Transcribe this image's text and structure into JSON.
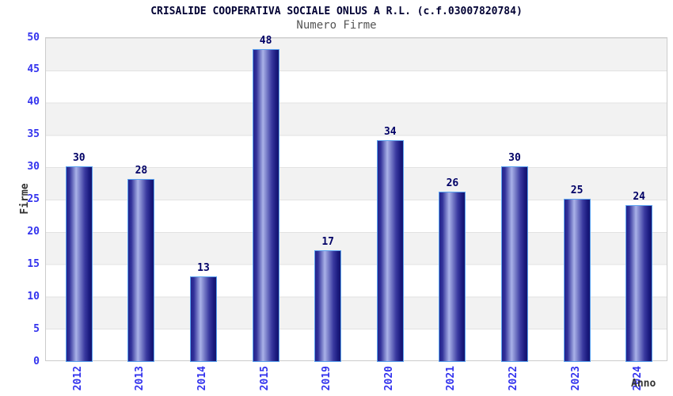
{
  "header": {
    "title": "CRISALIDE COOPERATIVA SOCIALE ONLUS A R.L. (c.f.03007820784)",
    "subtitle": "Numero Firme"
  },
  "chart_data": {
    "type": "bar",
    "title": "CRISALIDE COOPERATIVA SOCIALE ONLUS A R.L. (c.f.03007820784)",
    "subtitle": "Numero Firme",
    "categories": [
      "2012",
      "2013",
      "2014",
      "2015",
      "2019",
      "2020",
      "2021",
      "2022",
      "2023",
      "2024"
    ],
    "values": [
      30,
      28,
      13,
      48,
      17,
      34,
      26,
      30,
      25,
      24
    ],
    "xlabel": "Anno",
    "ylabel": "Firme",
    "ylim": [
      0,
      50
    ],
    "ytick_step": 5,
    "yticks": [
      0,
      5,
      10,
      15,
      20,
      25,
      30,
      35,
      40,
      45,
      50
    ],
    "grid": "horizontal-bands",
    "legend_position": "none",
    "bar_value_labels_shown": true,
    "x_tick_rotation_degrees": 90
  },
  "colors": {
    "bar_dark": "#23238c",
    "bar_highlight": "#a9b2e8",
    "bar_border": "#5ba3f0",
    "tick_label": "#3333ee",
    "value_label": "#000066",
    "title": "#000033",
    "subtitle": "#555555",
    "axis_name": "#333333",
    "band_gray": "#f2f2f2",
    "grid_line": "#e2e2e2",
    "plot_border": "#cccccc",
    "background": "#ffffff"
  }
}
